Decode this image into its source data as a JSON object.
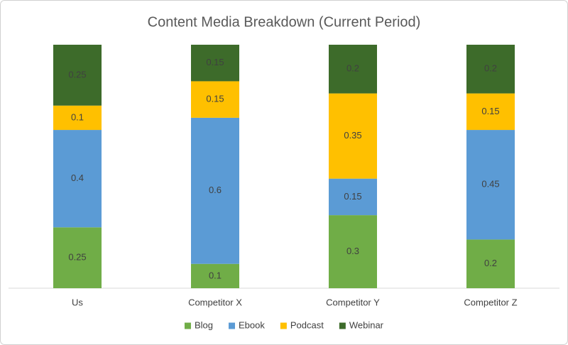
{
  "chart_data": {
    "type": "stacked-bar",
    "title": "Content Media Breakdown (Current Period)",
    "categories": [
      "Us",
      "Competitor X",
      "Competitor Y",
      "Competitor Z"
    ],
    "series": [
      {
        "name": "Blog",
        "color": "#70ad47",
        "values": [
          0.25,
          0.1,
          0.3,
          0.2
        ]
      },
      {
        "name": "Ebook",
        "color": "#5b9bd5",
        "values": [
          0.4,
          0.6,
          0.15,
          0.45
        ]
      },
      {
        "name": "Podcast",
        "color": "#ffc000",
        "values": [
          0.1,
          0.15,
          0.35,
          0.15
        ]
      },
      {
        "name": "Webinar",
        "color": "#3d6b2a",
        "values": [
          0.25,
          0.15,
          0.2,
          0.2
        ]
      }
    ],
    "legend": "bottom"
  }
}
